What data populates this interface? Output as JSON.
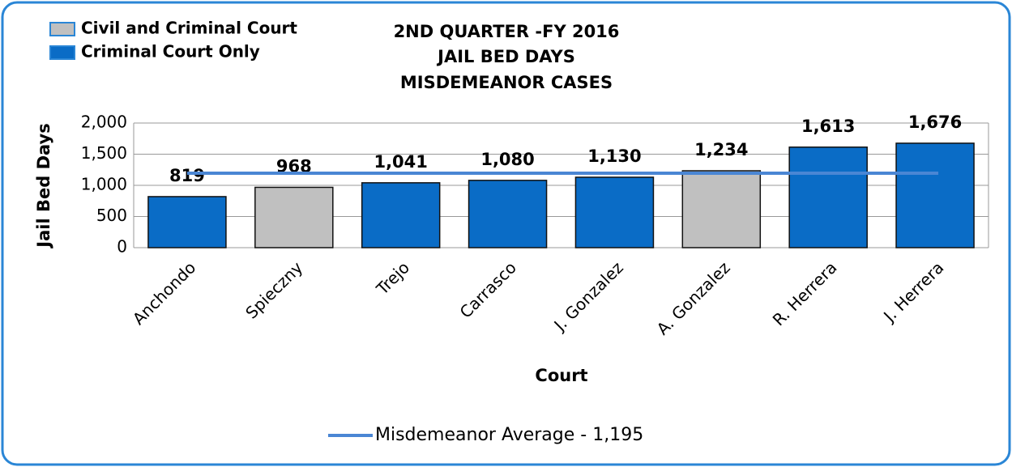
{
  "chart_data": {
    "type": "bar",
    "title": [
      "2ND QUARTER -FY 2016",
      "JAIL BED DAYS",
      "MISDEMEANOR CASES"
    ],
    "x_label": "Court",
    "y_label": "Jail Bed Days",
    "categories": [
      "Anchondo",
      "Spieczny",
      "Trejo",
      "Carrasco",
      "J. Gonzalez",
      "A. Gonzalez",
      "R. Herrera",
      "J. Herrera"
    ],
    "series": [
      {
        "name": "Civil and Criminal Court",
        "color": "#c0c0c0",
        "values": [
          null,
          968,
          null,
          null,
          null,
          1234,
          null,
          null
        ],
        "value_labels": [
          null,
          "968",
          null,
          null,
          null,
          "1,234",
          null,
          null
        ]
      },
      {
        "name": "Criminal Court Only",
        "color": "#0a6cc6",
        "values": [
          819,
          null,
          1041,
          1080,
          1130,
          null,
          1613,
          1676
        ],
        "value_labels": [
          "819",
          null,
          "1,041",
          "1,080",
          "1,130",
          null,
          "1,613",
          "1,676"
        ]
      }
    ],
    "average_line": {
      "name": "Misdemeanor Average - 1,195",
      "value": 1195,
      "color": "#4a86d4"
    },
    "ylim": [
      0,
      2000
    ],
    "yticks": [
      0,
      500,
      {
        "value": 1000,
        "label": "1,000"
      },
      {
        "value": 1500,
        "label": "1,500"
      },
      {
        "value": 2000,
        "label": "2,000"
      }
    ],
    "grid": true
  }
}
